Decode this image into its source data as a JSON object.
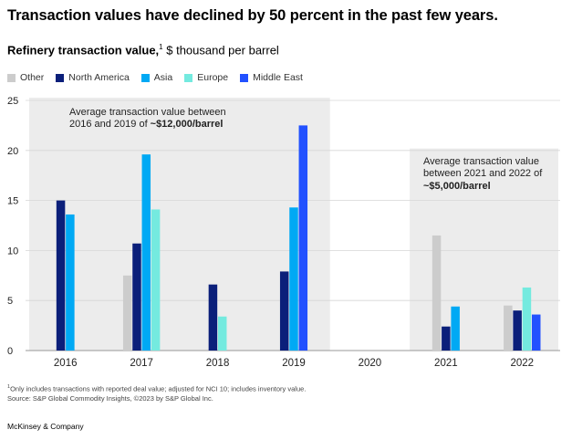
{
  "header": {
    "title": "Transaction values have declined by 50 percent in the past few years.",
    "subtitle_bold": "Refinery transaction value,",
    "subtitle_sup": "1",
    "subtitle_rest": " $ thousand per barrel"
  },
  "chart_data": {
    "type": "bar",
    "title": "Transaction values have declined by 50 percent in the past few years.",
    "ylabel": "$ thousand per barrel",
    "ylim": [
      0,
      25
    ],
    "yticks": [
      0,
      5,
      10,
      15,
      20,
      25
    ],
    "categories": [
      "2016",
      "2017",
      "2018",
      "2019",
      "2020",
      "2021",
      "2022"
    ],
    "series": [
      {
        "name": "Other",
        "color": "#cccccc",
        "values": [
          null,
          7.5,
          null,
          null,
          null,
          11.5,
          4.5
        ]
      },
      {
        "name": "North America",
        "color": "#0b1f7a",
        "values": [
          15.0,
          10.7,
          6.6,
          7.9,
          null,
          2.4,
          4.0
        ]
      },
      {
        "name": "Asia",
        "color": "#00a9f4",
        "values": [
          13.6,
          19.6,
          null,
          14.3,
          null,
          4.4,
          null
        ]
      },
      {
        "name": "Europe",
        "color": "#74eadf",
        "values": [
          null,
          14.1,
          3.4,
          null,
          null,
          null,
          6.3
        ]
      },
      {
        "name": "Middle East",
        "color": "#2251ff",
        "values": [
          null,
          null,
          null,
          22.5,
          null,
          null,
          3.6
        ]
      }
    ],
    "annotations": [
      {
        "text": "Average transaction value between 2016 and 2019 of",
        "highlight": "~$12,000/barrel",
        "span": [
          "2016",
          "2019"
        ]
      },
      {
        "text": "Average transaction value between 2021 and 2022 of",
        "highlight": "~$5,000/barrel",
        "span": [
          "2021",
          "2022"
        ]
      }
    ]
  },
  "annotations_text": {
    "a1_line1": "Average transaction value between",
    "a1_line2": "2016 and 2019 of",
    "a1_bold": "~$12,000/barrel",
    "a2_line1": "Average transaction value",
    "a2_line2": "between 2021 and 2022 of",
    "a2_bold": "~$5,000/barrel"
  },
  "footnote": {
    "sup": "1",
    "line1": "Only includes transactions with reported deal value; adjusted for NCI 10; includes inventory value.",
    "line2": "Source: S&P Global Commodity Insights, ©2023 by S&P Global Inc."
  },
  "brand": "McKinsey & Company"
}
